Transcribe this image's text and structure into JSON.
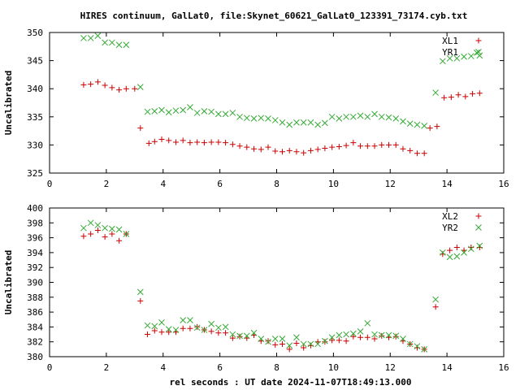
{
  "title": "HIRES continuum, GalLat0, file:Skynet_60621_GalLat0_123391_73174.cyb.txt",
  "chart_data": [
    {
      "type": "scatter",
      "ylabel": "Uncalibrated",
      "xlim": [
        0,
        16
      ],
      "ylim": [
        325,
        350
      ],
      "xticks": [
        0,
        2,
        4,
        6,
        8,
        10,
        12,
        14,
        16
      ],
      "yticks": [
        325,
        330,
        335,
        340,
        345,
        350
      ],
      "legend_position": "top-right",
      "series": [
        {
          "name": "XL1",
          "marker": "plus",
          "color": "#cc0000",
          "x": [
            1.2,
            1.45,
            1.7,
            1.95,
            2.2,
            2.45,
            2.7,
            3.0,
            3.2,
            3.5,
            3.7,
            3.95,
            4.2,
            4.45,
            4.7,
            4.95,
            5.2,
            5.45,
            5.7,
            5.95,
            6.2,
            6.45,
            6.7,
            6.95,
            7.2,
            7.45,
            7.7,
            7.95,
            8.2,
            8.45,
            8.7,
            8.95,
            9.2,
            9.45,
            9.7,
            9.95,
            10.2,
            10.45,
            10.7,
            10.95,
            11.2,
            11.45,
            11.7,
            11.95,
            12.2,
            12.45,
            12.7,
            12.95,
            13.2,
            13.4,
            13.65,
            13.9,
            14.15,
            14.4,
            14.65,
            14.9,
            15.15
          ],
          "y": [
            340.7,
            340.8,
            341.2,
            340.6,
            340.2,
            339.8,
            340.0,
            340.0,
            333.0,
            330.3,
            330.6,
            331.0,
            330.8,
            330.5,
            330.8,
            330.4,
            330.5,
            330.4,
            330.5,
            330.5,
            330.4,
            330.1,
            329.8,
            329.6,
            329.3,
            329.2,
            329.6,
            328.9,
            328.8,
            329.0,
            328.8,
            328.6,
            329.0,
            329.2,
            329.4,
            329.6,
            329.7,
            329.9,
            330.4,
            329.8,
            329.8,
            329.8,
            330.0,
            330.0,
            330.0,
            329.3,
            329.0,
            328.5,
            328.5,
            333.0,
            333.3,
            338.4,
            338.5,
            338.9,
            338.6,
            339.1,
            339.2
          ]
        },
        {
          "name": "YR1",
          "marker": "cross",
          "color": "#33aa33",
          "x": [
            1.2,
            1.45,
            1.7,
            1.95,
            2.2,
            2.45,
            2.7,
            3.2,
            3.45,
            3.7,
            3.95,
            4.2,
            4.45,
            4.7,
            4.95,
            5.2,
            5.45,
            5.7,
            5.95,
            6.2,
            6.45,
            6.7,
            6.95,
            7.2,
            7.45,
            7.7,
            7.95,
            8.2,
            8.45,
            8.7,
            8.95,
            9.2,
            9.45,
            9.7,
            9.95,
            10.2,
            10.45,
            10.7,
            10.95,
            11.2,
            11.45,
            11.7,
            11.95,
            12.2,
            12.45,
            12.7,
            12.95,
            13.2,
            13.6,
            13.85,
            14.1,
            14.35,
            14.6,
            14.85,
            15.05,
            15.15
          ],
          "y": [
            349.0,
            349.0,
            349.4,
            348.2,
            348.2,
            347.8,
            347.8,
            340.3,
            335.9,
            336.0,
            336.2,
            335.8,
            336.1,
            336.2,
            336.7,
            335.7,
            336.0,
            335.9,
            335.5,
            335.5,
            335.7,
            335.0,
            334.8,
            334.7,
            334.8,
            334.7,
            334.4,
            334.0,
            333.6,
            334.0,
            334.0,
            334.0,
            333.6,
            333.9,
            335.0,
            334.7,
            335.0,
            335.0,
            335.2,
            335.0,
            335.5,
            335.0,
            334.9,
            334.7,
            334.2,
            333.8,
            333.6,
            333.4,
            339.3,
            344.9,
            345.4,
            345.4,
            345.7,
            345.8,
            346.4,
            345.9
          ]
        }
      ]
    },
    {
      "type": "scatter",
      "ylabel": "Uncalibrated",
      "xlabel": "rel seconds : UT date 2024-11-07T18:49:13.000",
      "xlim": [
        0,
        16
      ],
      "ylim": [
        380,
        400
      ],
      "xticks": [
        0,
        2,
        4,
        6,
        8,
        10,
        12,
        14,
        16
      ],
      "yticks": [
        380,
        382,
        384,
        386,
        388,
        390,
        392,
        394,
        396,
        398,
        400
      ],
      "legend_position": "top-right",
      "series": [
        {
          "name": "XL2",
          "marker": "plus",
          "color": "#cc0000",
          "x": [
            1.2,
            1.45,
            1.7,
            1.95,
            2.2,
            2.45,
            2.7,
            3.2,
            3.45,
            3.7,
            3.95,
            4.2,
            4.45,
            4.7,
            4.95,
            5.2,
            5.45,
            5.7,
            5.95,
            6.2,
            6.45,
            6.7,
            6.95,
            7.2,
            7.45,
            7.7,
            7.95,
            8.2,
            8.45,
            8.7,
            8.95,
            9.2,
            9.45,
            9.7,
            9.95,
            10.2,
            10.45,
            10.7,
            10.95,
            11.2,
            11.45,
            11.7,
            11.95,
            12.2,
            12.45,
            12.7,
            12.95,
            13.2,
            13.6,
            13.85,
            14.1,
            14.35,
            14.6,
            14.85,
            15.15
          ],
          "y": [
            396.2,
            396.5,
            397.0,
            396.1,
            396.5,
            395.6,
            396.5,
            387.5,
            383.0,
            383.5,
            383.3,
            383.3,
            383.3,
            383.8,
            383.8,
            384.0,
            383.6,
            383.4,
            383.2,
            383.2,
            382.5,
            382.7,
            382.5,
            382.9,
            382.1,
            382.1,
            381.6,
            381.7,
            381.0,
            381.8,
            381.2,
            381.5,
            382.0,
            382.0,
            382.2,
            382.2,
            382.1,
            382.7,
            382.6,
            382.6,
            382.4,
            382.8,
            382.6,
            382.7,
            382.1,
            381.7,
            381.2,
            381.0,
            386.7,
            393.8,
            394.3,
            394.7,
            394.3,
            394.7,
            394.7
          ]
        },
        {
          "name": "YR2",
          "marker": "cross",
          "color": "#33aa33",
          "x": [
            1.2,
            1.45,
            1.7,
            1.95,
            2.2,
            2.45,
            2.7,
            3.2,
            3.45,
            3.7,
            3.95,
            4.2,
            4.45,
            4.7,
            4.95,
            5.2,
            5.45,
            5.7,
            5.95,
            6.2,
            6.45,
            6.7,
            6.95,
            7.2,
            7.45,
            7.7,
            7.95,
            8.2,
            8.45,
            8.7,
            8.95,
            9.2,
            9.45,
            9.7,
            9.95,
            10.2,
            10.45,
            10.7,
            10.95,
            11.2,
            11.45,
            11.7,
            11.95,
            12.2,
            12.45,
            12.7,
            12.95,
            13.2,
            13.6,
            13.85,
            14.1,
            14.35,
            14.6,
            14.85,
            15.15
          ],
          "y": [
            397.3,
            398.0,
            397.7,
            397.3,
            397.2,
            397.1,
            396.5,
            388.7,
            384.2,
            384.1,
            384.6,
            383.7,
            383.6,
            384.9,
            384.9,
            383.9,
            383.6,
            384.4,
            383.9,
            384.0,
            383.0,
            382.8,
            382.8,
            383.2,
            382.4,
            382.0,
            382.4,
            382.4,
            381.5,
            382.6,
            381.7,
            381.7,
            381.7,
            382.1,
            382.6,
            382.9,
            383.0,
            383.1,
            383.4,
            384.5,
            383.0,
            382.9,
            382.9,
            382.8,
            382.4,
            381.7,
            381.4,
            381.0,
            387.7,
            394.0,
            393.4,
            393.5,
            394.0,
            394.5,
            394.9
          ]
        }
      ]
    }
  ]
}
